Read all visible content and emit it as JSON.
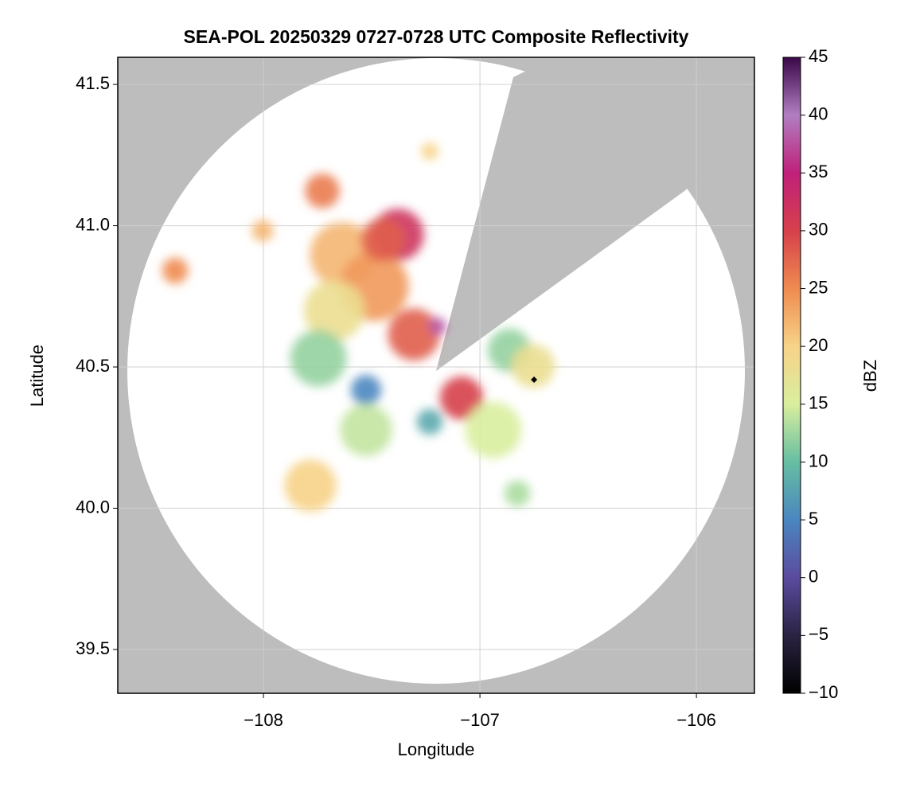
{
  "chart_data": {
    "type": "radar",
    "title": "SEA-POL 20250329 0727-0728 UTC Composite Reflectivity",
    "x_label": "Longitude",
    "y_label": "Latitude",
    "xlim": [
      -108.673,
      -105.732
    ],
    "ylim": [
      39.345,
      41.596
    ],
    "xticks": [
      {
        "value": -108,
        "label": "−108"
      },
      {
        "value": -107,
        "label": "−107"
      },
      {
        "value": -106,
        "label": "−106"
      }
    ],
    "yticks": [
      39.5,
      40.0,
      40.5,
      41.0,
      41.5
    ],
    "yticks_labels": [
      "39.5",
      "40.0",
      "40.5",
      "41.0",
      "41.5"
    ],
    "grid": true,
    "colorbar_label": "dBZ",
    "clim": [
      -10,
      45
    ],
    "cticks": [
      {
        "value": -10,
        "label": "−10"
      },
      {
        "value": -5,
        "label": "−5"
      },
      0,
      5,
      10,
      15,
      20,
      25,
      30,
      35,
      40,
      45
    ],
    "colormap": [
      "#000000",
      "#2a2342",
      "#5b4b9f",
      "#4a86c0",
      "#66bea2",
      "#d9ee9e",
      "#f7d388",
      "#ef8b50",
      "#d6404b",
      "#c0207a",
      "#b07ec2",
      "#3a0848"
    ],
    "cells": {
      "x": [
        -107.379,
        -107.636,
        -107.489,
        -107.673,
        -107.746,
        -107.526,
        -107.305,
        -107.195,
        -107.085,
        -106.938,
        -106.864,
        -106.754,
        -107.526,
        -107.783,
        -107.728,
        -108.408,
        -108.004,
        -107.232,
        -106.827,
        -107.232,
        -107.45
      ],
      "y": [
        40.968,
        40.897,
        40.785,
        40.7,
        40.531,
        40.418,
        40.615,
        40.644,
        40.39,
        40.277,
        40.559,
        40.503,
        40.277,
        40.08,
        41.123,
        40.841,
        40.982,
        41.263,
        40.052,
        40.306,
        40.95
      ],
      "values": [
        32,
        22,
        24,
        18,
        12,
        5,
        28,
        38,
        30,
        15,
        12,
        18,
        14,
        20,
        26,
        25,
        22,
        20,
        13,
        8,
        28
      ],
      "sizes": [
        0.12,
        0.15,
        0.16,
        0.14,
        0.13,
        0.07,
        0.12,
        0.04,
        0.1,
        0.13,
        0.1,
        0.1,
        0.12,
        0.12,
        0.08,
        0.06,
        0.05,
        0.04,
        0.06,
        0.06,
        0.1
      ]
    },
    "marker": {
      "x": -106.75,
      "y": 40.455
    }
  }
}
